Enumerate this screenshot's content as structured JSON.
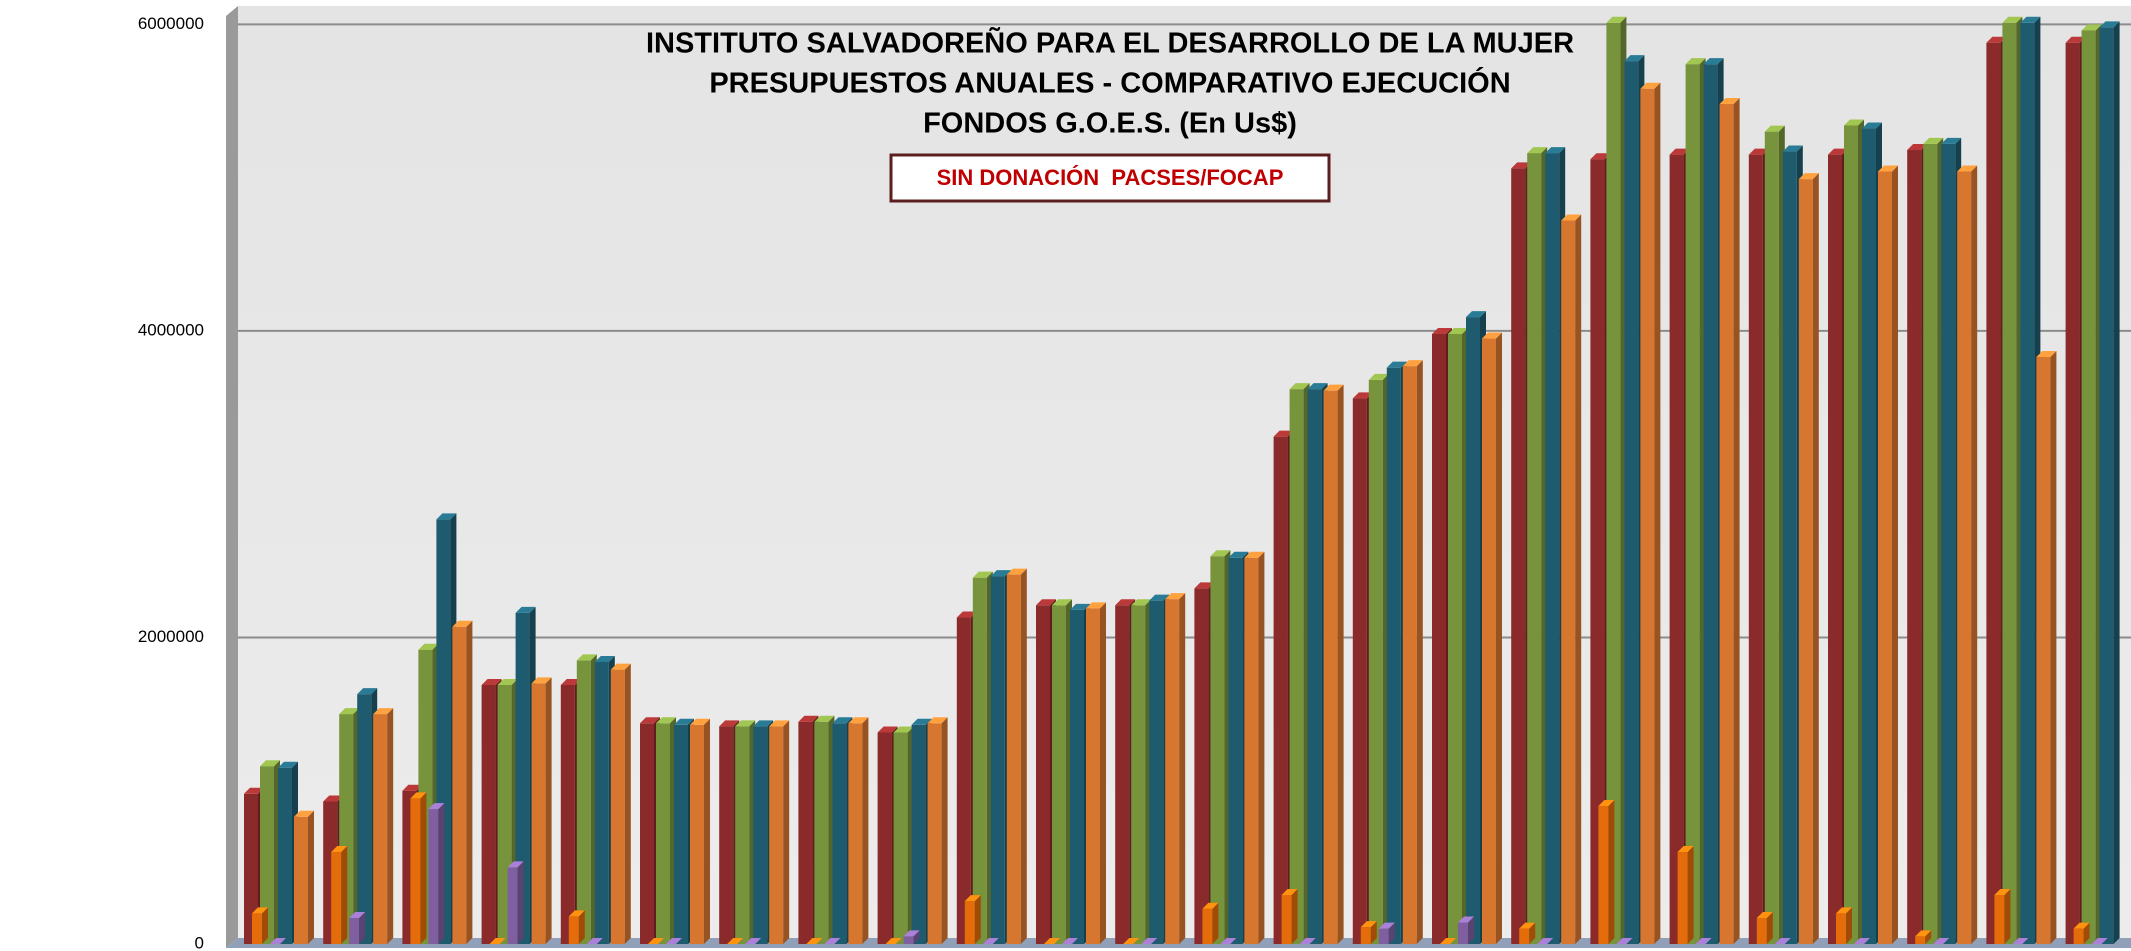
{
  "chart_data": {
    "type": "bar3d",
    "title": [
      "INSTITUTO SALVADOREÑO PARA EL DESARROLLO DE LA MUJER",
      "PRESUPUESTOS ANUALES - COMPARATIVO EJECUCIÓN",
      "FONDOS G.O.E.S.  (En Us$)"
    ],
    "annotations": [
      "SIN DONACIÓN  PACSES/FOCAP"
    ],
    "categories": [
      null,
      null,
      null,
      null,
      null,
      null,
      null,
      null,
      null,
      null,
      null,
      null,
      null,
      null,
      null,
      null,
      null,
      null,
      null,
      null,
      null,
      null,
      null,
      null
    ],
    "ylim": [
      0,
      6100000
    ],
    "yticks": [
      0,
      2000000,
      4000000,
      6000000
    ],
    "grid": true,
    "series": [
      {
        "color": "#8b2a2a",
        "values": [
          980000,
          930000,
          1000000,
          1690000,
          1690000,
          1440000,
          1420000,
          1450000,
          1380000,
          2130000,
          2210000,
          2210000,
          2320000,
          3310000,
          3560000,
          3980000,
          5060000,
          5120000,
          5150000,
          5150000,
          5150000,
          5180000,
          5880000,
          5880000
        ]
      },
      {
        "color": "#e46c0a",
        "values": [
          200000,
          600000,
          950000,
          0,
          180000,
          0,
          0,
          0,
          0,
          280000,
          0,
          0,
          230000,
          320000,
          110000,
          0,
          100000,
          900000,
          600000,
          170000,
          200000,
          50000,
          320000,
          100000
        ]
      },
      {
        "color": "#77933c",
        "values": [
          1160000,
          1500000,
          1920000,
          1690000,
          1850000,
          1440000,
          1420000,
          1450000,
          1380000,
          2390000,
          2210000,
          2210000,
          2530000,
          3620000,
          3680000,
          3980000,
          5160000,
          6010000,
          5740000,
          5300000,
          5340000,
          5220000,
          6010000,
          5960000
        ]
      },
      {
        "color": "#7f5fa0",
        "values": [
          0,
          170000,
          880000,
          500000,
          0,
          0,
          0,
          0,
          50000,
          0,
          0,
          0,
          0,
          0,
          100000,
          140000,
          0,
          0,
          0,
          0,
          0,
          0,
          0,
          0
        ]
      },
      {
        "color": "#1f5b6e",
        "values": [
          1150000,
          1630000,
          2770000,
          2160000,
          1840000,
          1430000,
          1420000,
          1440000,
          1430000,
          2400000,
          2180000,
          2240000,
          2520000,
          3620000,
          3760000,
          4090000,
          5160000,
          5760000,
          5740000,
          5170000,
          5320000,
          5220000,
          6010000,
          5980000
        ]
      },
      {
        "color": "#d7772f",
        "values": [
          830000,
          1500000,
          2070000,
          1700000,
          1790000,
          1430000,
          1420000,
          1440000,
          1440000,
          2410000,
          2190000,
          2250000,
          2520000,
          3610000,
          3770000,
          3950000,
          4720000,
          5580000,
          5480000,
          4990000,
          5040000,
          5040000,
          3830000,
          null
        ]
      }
    ]
  }
}
